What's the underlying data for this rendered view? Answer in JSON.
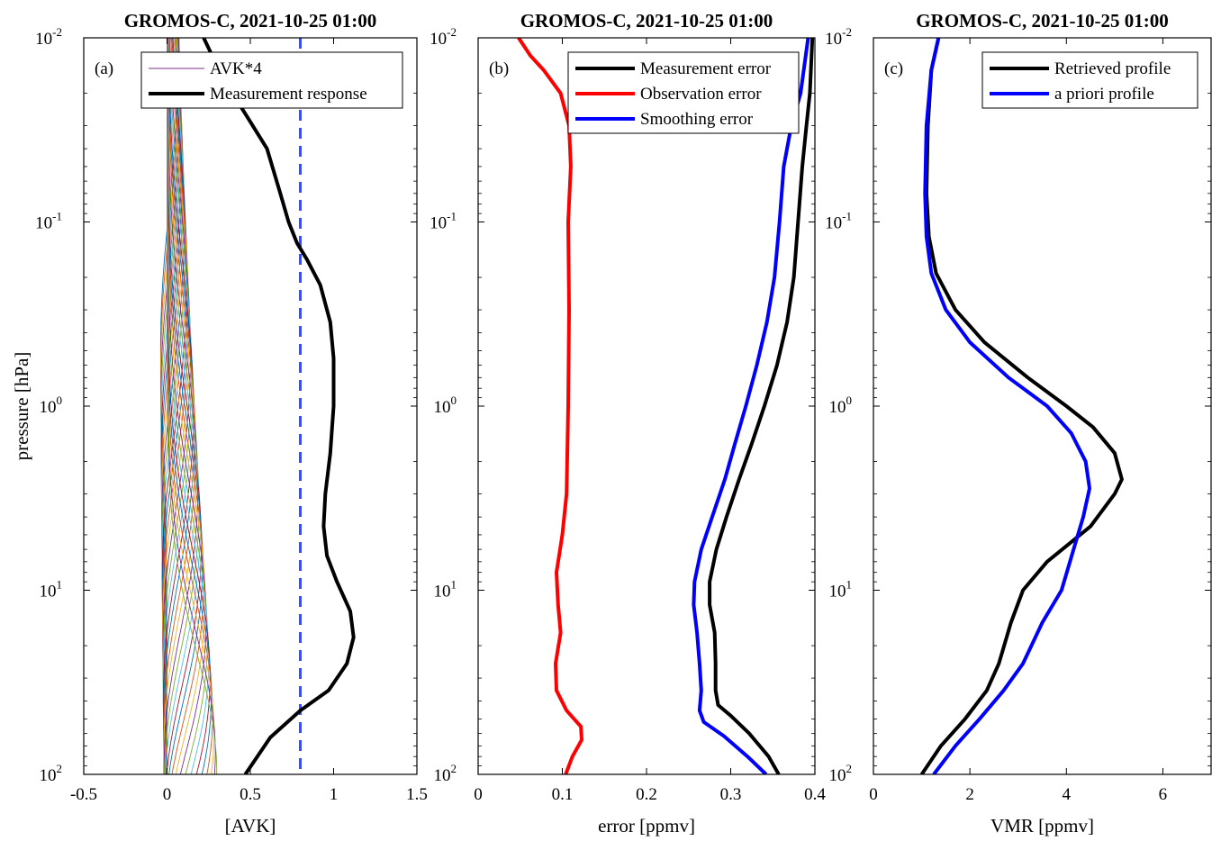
{
  "chart_data": [
    {
      "type": "line",
      "title": "GROMOS-C, 2021-10-25 01:00",
      "panel_label": "(a)",
      "xlabel": "[AVK]",
      "ylabel": "pressure [hPa]",
      "xlim": [
        -0.5,
        1.5
      ],
      "ylim": [
        100,
        0.01
      ],
      "y_scale": "log",
      "y_reversed": true,
      "xticks": [
        -0.5,
        0,
        0.5,
        1,
        1.5
      ],
      "xtick_labels": [
        "-0.5",
        "0",
        "0.5",
        "1",
        "1.5"
      ],
      "ytick_exponents": [
        "-2",
        "-1",
        "0",
        "1",
        "2"
      ],
      "legend_position": "top-right",
      "grid": false,
      "avk": {
        "name": "AVK*4",
        "count": 40,
        "peak_pressures_log10_min": -2.0,
        "peak_pressures_log10_max": 2.0,
        "colors": [
          "#0072BD",
          "#D95319",
          "#EDB120",
          "#7E2F8E",
          "#77AC30",
          "#4DBEEE",
          "#A2142F"
        ]
      },
      "series": [
        {
          "name": "Measurement response",
          "color": "#000000",
          "points": [
            [
              0.47,
              100
            ],
            [
              0.62,
              63
            ],
            [
              0.8,
              45
            ],
            [
              0.97,
              35
            ],
            [
              1.08,
              25
            ],
            [
              1.12,
              18
            ],
            [
              1.1,
              13
            ],
            [
              1.02,
              9
            ],
            [
              0.96,
              6.5
            ],
            [
              0.94,
              4.5
            ],
            [
              0.95,
              3
            ],
            [
              0.98,
              1.8
            ],
            [
              1.0,
              1.0
            ],
            [
              1.0,
              0.55
            ],
            [
              0.98,
              0.35
            ],
            [
              0.92,
              0.22
            ],
            [
              0.84,
              0.16
            ],
            [
              0.78,
              0.13
            ],
            [
              0.73,
              0.1
            ],
            [
              0.68,
              0.07
            ],
            [
              0.6,
              0.04
            ],
            [
              0.46,
              0.025
            ],
            [
              0.36,
              0.018
            ],
            [
              0.28,
              0.013
            ],
            [
              0.22,
              0.01
            ]
          ]
        }
      ],
      "reference_line": {
        "x": 0.8,
        "color": "#3B4EE8",
        "style": "dashed"
      }
    },
    {
      "type": "line",
      "title": "GROMOS-C, 2021-10-25 01:00",
      "panel_label": "(b)",
      "xlabel": "error [ppmv]",
      "xlim": [
        0,
        0.4
      ],
      "ylim": [
        100,
        0.01
      ],
      "y_scale": "log",
      "y_reversed": true,
      "xticks": [
        0,
        0.1,
        0.2,
        0.3,
        0.4
      ],
      "xtick_labels": [
        "0",
        "0.1",
        "0.2",
        "0.3",
        "0.4"
      ],
      "ytick_exponents": [
        "-2",
        "-1",
        "0",
        "1",
        "2"
      ],
      "legend_position": "top-right",
      "grid": false,
      "series": [
        {
          "name": "Measurement error",
          "color": "#000000",
          "points": [
            [
              0.357,
              100
            ],
            [
              0.345,
              80
            ],
            [
              0.322,
              60
            ],
            [
              0.3,
              48
            ],
            [
              0.285,
              42
            ],
            [
              0.282,
              35
            ],
            [
              0.282,
              25
            ],
            [
              0.281,
              17
            ],
            [
              0.275,
              12
            ],
            [
              0.275,
              9
            ],
            [
              0.283,
              6
            ],
            [
              0.295,
              4
            ],
            [
              0.31,
              2.5
            ],
            [
              0.325,
              1.6
            ],
            [
              0.34,
              1.0
            ],
            [
              0.355,
              0.6
            ],
            [
              0.367,
              0.35
            ],
            [
              0.375,
              0.2
            ],
            [
              0.38,
              0.1
            ],
            [
              0.385,
              0.05
            ],
            [
              0.39,
              0.03
            ],
            [
              0.394,
              0.02
            ],
            [
              0.397,
              0.01
            ]
          ]
        },
        {
          "name": "Observation error",
          "color": "#FF0000",
          "points": [
            [
              0.104,
              100
            ],
            [
              0.112,
              80
            ],
            [
              0.123,
              65
            ],
            [
              0.122,
              55
            ],
            [
              0.105,
              45
            ],
            [
              0.093,
              35
            ],
            [
              0.092,
              25
            ],
            [
              0.098,
              17
            ],
            [
              0.095,
              12
            ],
            [
              0.093,
              8
            ],
            [
              0.1,
              5
            ],
            [
              0.105,
              3
            ],
            [
              0.107,
              1.0
            ],
            [
              0.108,
              0.3
            ],
            [
              0.107,
              0.1
            ],
            [
              0.11,
              0.05
            ],
            [
              0.108,
              0.03
            ],
            [
              0.098,
              0.02
            ],
            [
              0.078,
              0.015
            ],
            [
              0.062,
              0.0125
            ],
            [
              0.048,
              0.01
            ]
          ]
        },
        {
          "name": "Smoothing error",
          "color": "#0000FF",
          "points": [
            [
              0.342,
              100
            ],
            [
              0.32,
              80
            ],
            [
              0.292,
              62
            ],
            [
              0.268,
              52
            ],
            [
              0.263,
              45
            ],
            [
              0.265,
              35
            ],
            [
              0.263,
              25
            ],
            [
              0.26,
              17
            ],
            [
              0.256,
              12
            ],
            [
              0.257,
              9
            ],
            [
              0.265,
              6
            ],
            [
              0.278,
              4
            ],
            [
              0.293,
              2.5
            ],
            [
              0.305,
              1.6
            ],
            [
              0.318,
              1.0
            ],
            [
              0.331,
              0.6
            ],
            [
              0.343,
              0.35
            ],
            [
              0.352,
              0.2
            ],
            [
              0.358,
              0.1
            ],
            [
              0.363,
              0.05
            ],
            [
              0.372,
              0.03
            ],
            [
              0.383,
              0.02
            ],
            [
              0.392,
              0.01
            ]
          ]
        }
      ]
    },
    {
      "type": "line",
      "title": "GROMOS-C, 2021-10-25 01:00",
      "panel_label": "(c)",
      "xlabel": "VMR [ppmv]",
      "xlim": [
        0,
        7
      ],
      "ylim": [
        100,
        0.01
      ],
      "y_scale": "log",
      "y_reversed": true,
      "xticks": [
        0,
        2,
        4,
        6
      ],
      "xtick_labels": [
        "0",
        "2",
        "4",
        "6"
      ],
      "ytick_exponents": [
        "-2",
        "-1",
        "0",
        "1",
        "2"
      ],
      "legend_position": "top-right",
      "grid": false,
      "series": [
        {
          "name": "Retrieved profile",
          "color": "#000000",
          "points": [
            [
              1.0,
              100
            ],
            [
              1.4,
              70
            ],
            [
              1.9,
              50
            ],
            [
              2.35,
              35
            ],
            [
              2.6,
              25
            ],
            [
              2.85,
              15
            ],
            [
              3.1,
              10
            ],
            [
              3.6,
              7
            ],
            [
              4.5,
              4.5
            ],
            [
              5.0,
              3.0
            ],
            [
              5.15,
              2.5
            ],
            [
              5.0,
              1.8
            ],
            [
              4.55,
              1.3
            ],
            [
              4.0,
              1.0
            ],
            [
              3.2,
              0.7
            ],
            [
              2.3,
              0.45
            ],
            [
              1.7,
              0.3
            ],
            [
              1.3,
              0.19
            ],
            [
              1.15,
              0.12
            ],
            [
              1.1,
              0.07
            ],
            [
              1.13,
              0.03
            ],
            [
              1.2,
              0.015
            ],
            [
              1.35,
              0.01
            ]
          ]
        },
        {
          "name": "a priori profile",
          "color": "#0000FF",
          "points": [
            [
              1.25,
              100
            ],
            [
              1.7,
              70
            ],
            [
              2.2,
              50
            ],
            [
              2.7,
              35
            ],
            [
              3.1,
              25
            ],
            [
              3.5,
              15
            ],
            [
              3.9,
              10
            ],
            [
              4.15,
              6
            ],
            [
              4.35,
              4
            ],
            [
              4.48,
              2.8
            ],
            [
              4.4,
              2.0
            ],
            [
              4.1,
              1.4
            ],
            [
              3.6,
              1.0
            ],
            [
              2.8,
              0.7
            ],
            [
              2.0,
              0.45
            ],
            [
              1.5,
              0.3
            ],
            [
              1.2,
              0.19
            ],
            [
              1.1,
              0.12
            ],
            [
              1.07,
              0.07
            ],
            [
              1.1,
              0.03
            ],
            [
              1.2,
              0.015
            ],
            [
              1.35,
              0.01
            ]
          ]
        }
      ]
    }
  ]
}
